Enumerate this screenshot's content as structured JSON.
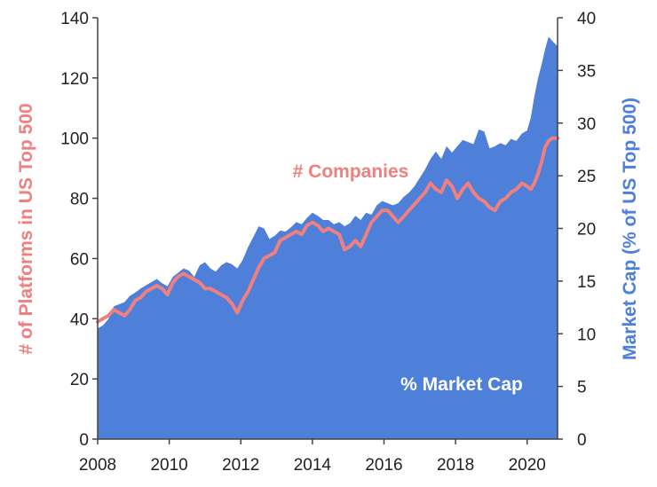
{
  "chart_data": {
    "type": "line",
    "title": "",
    "xlabel": "",
    "ylabel_left": "# of Platforms in US Top 500",
    "ylabel_right": "Market Cap (% of US Top 500)",
    "xlim": [
      2008,
      2020.85
    ],
    "ylim_left": [
      0,
      140
    ],
    "ylim_right": [
      0,
      40
    ],
    "x_ticks": [
      "2008",
      "2010",
      "2012",
      "2014",
      "2016",
      "2018",
      "2020"
    ],
    "y_ticks_left": [
      "0",
      "20",
      "40",
      "60",
      "80",
      "100",
      "120",
      "140"
    ],
    "y_ticks_right": [
      "0",
      "5",
      "10",
      "15",
      "20",
      "25",
      "30",
      "35",
      "40"
    ],
    "grid": false,
    "colors": {
      "companies": "#f08080",
      "market_cap": "#4e7fd9",
      "axis": "#444444"
    },
    "annotations": {
      "companies": "# Companies",
      "market_cap": "% Market Cap"
    },
    "series": [
      {
        "name": "% Market Cap",
        "axis": "right",
        "kind": "area",
        "x": [
          2008.0,
          2008.15,
          2008.3,
          2008.45,
          2008.6,
          2008.75,
          2008.9,
          2009.05,
          2009.2,
          2009.35,
          2009.5,
          2009.65,
          2009.8,
          2009.95,
          2010.1,
          2010.25,
          2010.4,
          2010.55,
          2010.7,
          2010.85,
          2011.0,
          2011.15,
          2011.3,
          2011.45,
          2011.6,
          2011.75,
          2011.9,
          2012.05,
          2012.2,
          2012.35,
          2012.5,
          2012.65,
          2012.8,
          2012.95,
          2013.1,
          2013.25,
          2013.4,
          2013.55,
          2013.7,
          2013.85,
          2014.0,
          2014.15,
          2014.3,
          2014.45,
          2014.6,
          2014.75,
          2014.9,
          2015.05,
          2015.2,
          2015.35,
          2015.5,
          2015.65,
          2015.8,
          2015.95,
          2016.1,
          2016.25,
          2016.4,
          2016.55,
          2016.7,
          2016.85,
          2017.0,
          2017.15,
          2017.3,
          2017.45,
          2017.6,
          2017.75,
          2017.9,
          2018.05,
          2018.2,
          2018.35,
          2018.5,
          2018.65,
          2018.8,
          2018.95,
          2019.1,
          2019.25,
          2019.4,
          2019.55,
          2019.7,
          2019.85,
          2020.0,
          2020.1,
          2020.2,
          2020.3,
          2020.4,
          2020.5,
          2020.6,
          2020.7,
          2020.85
        ],
        "values": [
          10.5,
          10.8,
          11.4,
          12.6,
          12.8,
          13.0,
          13.6,
          13.9,
          14.3,
          14.6,
          14.9,
          15.2,
          14.8,
          14.5,
          15.4,
          15.8,
          16.2,
          16.0,
          15.4,
          16.5,
          16.8,
          16.2,
          15.9,
          16.5,
          16.8,
          16.6,
          16.2,
          17.0,
          18.2,
          19.2,
          20.2,
          20.0,
          19.0,
          19.3,
          19.8,
          19.7,
          20.1,
          20.6,
          20.4,
          21.0,
          21.5,
          21.2,
          20.8,
          20.8,
          20.4,
          20.6,
          20.2,
          20.5,
          21.2,
          20.8,
          21.5,
          21.3,
          22.2,
          22.6,
          22.4,
          22.2,
          22.4,
          23.0,
          23.4,
          24.0,
          24.8,
          25.6,
          26.6,
          27.3,
          26.6,
          27.8,
          27.2,
          27.8,
          28.4,
          28.2,
          28.0,
          29.4,
          29.2,
          27.6,
          27.8,
          28.1,
          27.9,
          28.5,
          28.3,
          29.0,
          29.3,
          30.5,
          32.5,
          34.2,
          35.5,
          37.0,
          38.2,
          37.8,
          37.3
        ]
      },
      {
        "name": "# Companies",
        "axis": "left",
        "kind": "line",
        "x": [
          2008.0,
          2008.15,
          2008.3,
          2008.45,
          2008.6,
          2008.75,
          2008.9,
          2009.05,
          2009.2,
          2009.35,
          2009.5,
          2009.65,
          2009.8,
          2009.95,
          2010.1,
          2010.25,
          2010.4,
          2010.55,
          2010.7,
          2010.85,
          2011.0,
          2011.15,
          2011.3,
          2011.45,
          2011.6,
          2011.75,
          2011.9,
          2012.05,
          2012.2,
          2012.35,
          2012.5,
          2012.65,
          2012.8,
          2012.95,
          2013.1,
          2013.25,
          2013.4,
          2013.55,
          2013.7,
          2013.85,
          2014.0,
          2014.15,
          2014.3,
          2014.45,
          2014.6,
          2014.75,
          2014.9,
          2015.05,
          2015.2,
          2015.35,
          2015.5,
          2015.65,
          2015.8,
          2015.95,
          2016.1,
          2016.25,
          2016.4,
          2016.55,
          2016.7,
          2016.85,
          2017.0,
          2017.15,
          2017.3,
          2017.45,
          2017.6,
          2017.75,
          2017.9,
          2018.05,
          2018.2,
          2018.35,
          2018.5,
          2018.65,
          2018.8,
          2018.95,
          2019.1,
          2019.25,
          2019.4,
          2019.55,
          2019.7,
          2019.85,
          2020.0,
          2020.1,
          2020.2,
          2020.3,
          2020.4,
          2020.5,
          2020.6,
          2020.7,
          2020.85
        ],
        "values": [
          39,
          40,
          41,
          43,
          42,
          41,
          43,
          46,
          47,
          49,
          50,
          51,
          50,
          48,
          52,
          54,
          55,
          54,
          53,
          52,
          50,
          50,
          49,
          48,
          47,
          45,
          42,
          46,
          49,
          53,
          57,
          60,
          61,
          62,
          66,
          67,
          68,
          69,
          68,
          71,
          72,
          71,
          69,
          70,
          69,
          68,
          63,
          64,
          66,
          64,
          68,
          72,
          74,
          76,
          76,
          74,
          72,
          74,
          76,
          78,
          80,
          82,
          85,
          83,
          82,
          86,
          84,
          80,
          83,
          85,
          82,
          80,
          79,
          77,
          76,
          79,
          80,
          82,
          83,
          85,
          84,
          83,
          85,
          88,
          92,
          97,
          99,
          100,
          100
        ]
      }
    ]
  }
}
